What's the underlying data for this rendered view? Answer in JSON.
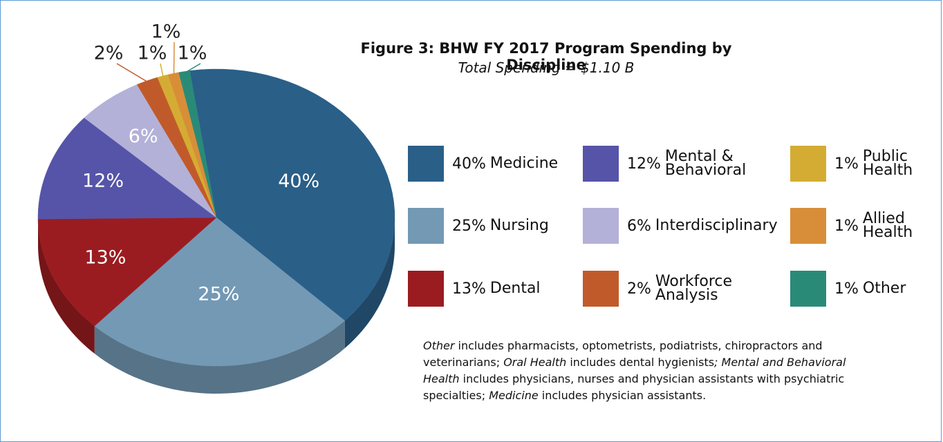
{
  "chart_data": {
    "type": "pie",
    "title": "Figure 3: BHW FY 2017 Program Spending by Discipline",
    "subtitle": "Total Spending = $1.10 B",
    "categories": [
      "Medicine",
      "Nursing",
      "Dental",
      "Mental & Behavioral",
      "Interdisciplinary",
      "Workforce Analysis",
      "Public Health",
      "Allied Health",
      "Other"
    ],
    "values": [
      40,
      25,
      13,
      12,
      6,
      2,
      1,
      1,
      1
    ],
    "value_labels": [
      "40%",
      "25%",
      "13%",
      "12%",
      "6%",
      "2%",
      "1%",
      "1%",
      "1%"
    ],
    "colors": [
      "#2a5f88",
      "#7399b5",
      "#9b1c20",
      "#5654a8",
      "#b3b1d8",
      "#c15a2a",
      "#d4ac33",
      "#d88e39",
      "#2a8a78"
    ],
    "legend": "right",
    "note": [
      {
        "text": "Other",
        "italic": true
      },
      {
        "text": " includes pharmacists, optometrists, podiatrists, chiropractors and veterinarians; ",
        "italic": false
      },
      {
        "text": "Oral Health",
        "italic": true
      },
      {
        "text": " includes dental hygienists",
        "italic": false
      },
      {
        "text": "; Mental and Behavioral Health",
        "italic": true
      },
      {
        "text": " includes physicians, nurses and physician assistants with psychiatric specialties; ",
        "italic": false
      },
      {
        "text": "Medicine",
        "italic": true
      },
      {
        "text": " includes physician assistants.",
        "italic": false
      }
    ]
  }
}
